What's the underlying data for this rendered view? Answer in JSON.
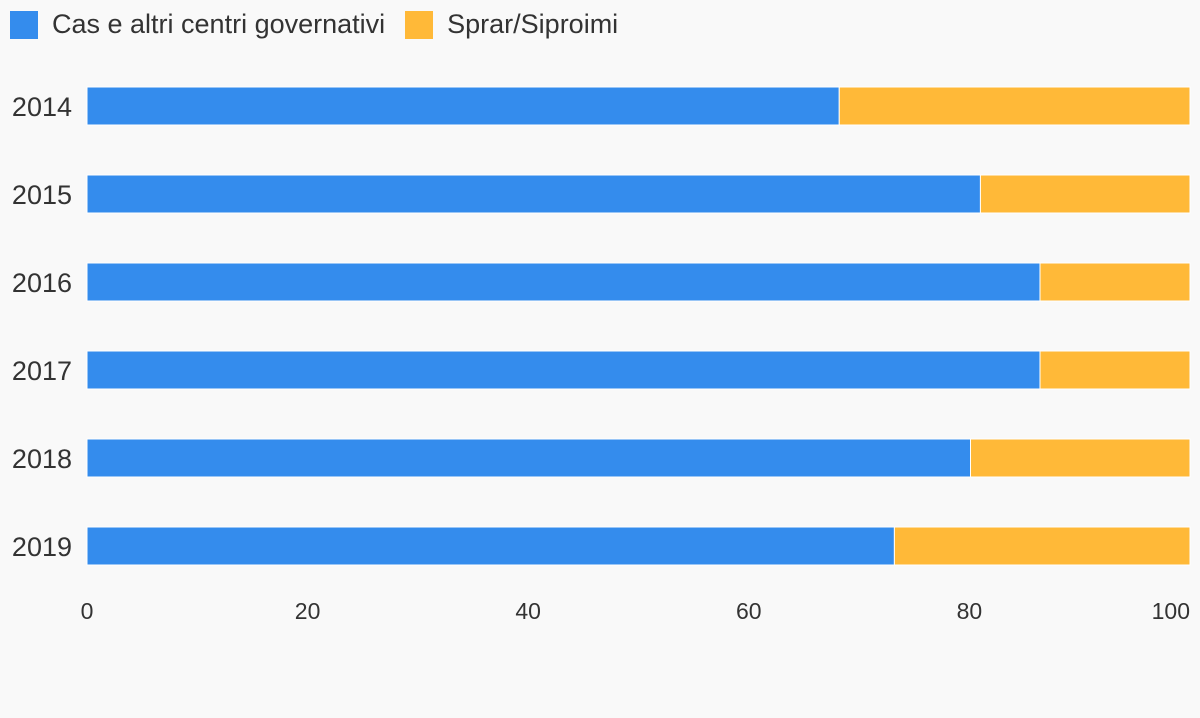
{
  "chart_data": {
    "type": "bar",
    "orientation": "horizontal",
    "stacked": true,
    "categories": [
      "2014",
      "2015",
      "2016",
      "2017",
      "2018",
      "2019"
    ],
    "series": [
      {
        "name": "Cas e altri centri governativi",
        "color": "#348ced",
        "values": [
          68.2,
          81.0,
          86.4,
          86.4,
          80.1,
          73.2
        ]
      },
      {
        "name": "Sprar/Siproimi",
        "color": "#ffb938",
        "values": [
          31.8,
          19.0,
          13.6,
          13.6,
          19.9,
          26.8
        ]
      }
    ],
    "xlim": [
      0,
      100
    ],
    "xticks": [
      "0",
      "20",
      "40",
      "60",
      "80",
      "100"
    ],
    "legend_position": "top-left",
    "grid": false
  }
}
